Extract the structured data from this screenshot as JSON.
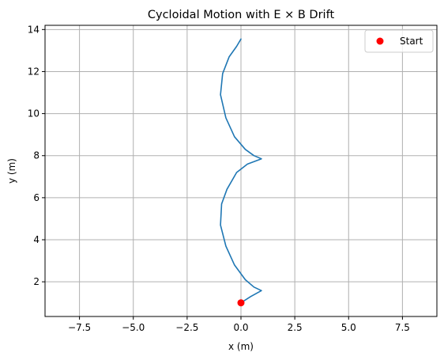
{
  "chart_data": {
    "type": "line",
    "title": "Cycloidal Motion with E ⨯ B Drift",
    "xlabel": "x (m)",
    "ylabel": "y (m)",
    "xlim": [
      -9.1,
      9.1
    ],
    "ylim": [
      0.35,
      14.2
    ],
    "x_ticks": [
      -7.5,
      -5.0,
      -2.5,
      0.0,
      2.5,
      5.0,
      7.5
    ],
    "x_tick_labels": [
      "−7.5",
      "−5.0",
      "−2.5",
      "0.0",
      "2.5",
      "5.0",
      "7.5"
    ],
    "y_ticks": [
      2,
      4,
      6,
      8,
      10,
      12,
      14
    ],
    "y_tick_labels": [
      "2",
      "4",
      "6",
      "8",
      "10",
      "12",
      "14"
    ],
    "grid": true,
    "legend": {
      "position": "top-right",
      "entries": [
        "Start"
      ]
    },
    "series": [
      {
        "type": "line",
        "color": "#1f77b4",
        "points": [
          [
            0.0,
            1.0
          ],
          [
            0.45,
            1.3
          ],
          [
            0.95,
            1.58
          ],
          [
            0.6,
            1.75
          ],
          [
            0.2,
            2.1
          ],
          [
            -0.3,
            2.8
          ],
          [
            -0.7,
            3.7
          ],
          [
            -0.95,
            4.7
          ],
          [
            -0.9,
            5.7
          ],
          [
            -0.65,
            6.4
          ],
          [
            -0.2,
            7.2
          ],
          [
            0.3,
            7.6
          ],
          [
            0.95,
            7.85
          ],
          [
            0.6,
            8.0
          ],
          [
            0.2,
            8.3
          ],
          [
            -0.3,
            8.9
          ],
          [
            -0.7,
            9.8
          ],
          [
            -0.95,
            10.9
          ],
          [
            -0.85,
            11.9
          ],
          [
            -0.55,
            12.7
          ],
          [
            -0.2,
            13.2
          ],
          [
            0.0,
            13.55
          ]
        ]
      },
      {
        "name": "Start",
        "type": "scatter",
        "color": "#ff0000",
        "points": [
          [
            0.0,
            1.0
          ]
        ]
      }
    ]
  }
}
